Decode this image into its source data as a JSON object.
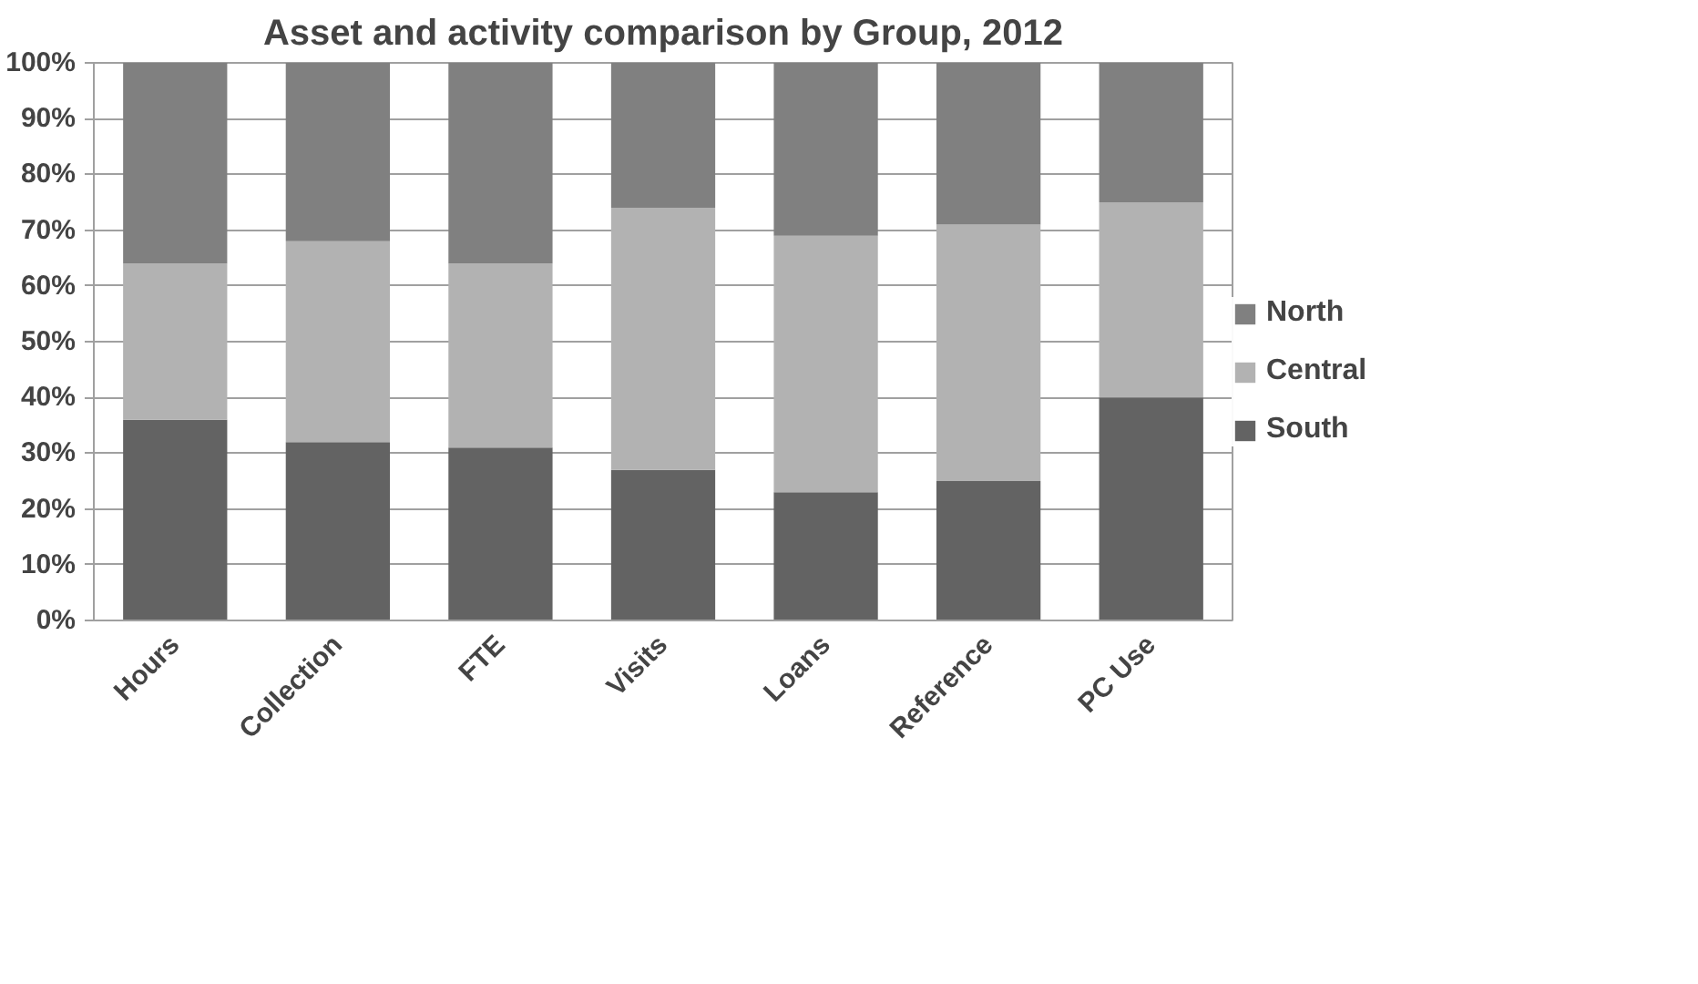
{
  "chart_data": {
    "type": "bar",
    "title": "Asset and activity comparison by Group, 2012",
    "stacked": true,
    "categories": [
      "Hours",
      "Collection",
      "FTE",
      "Visits",
      "Loans",
      "Reference",
      "PC Use"
    ],
    "series": [
      {
        "name": "South",
        "color": "#636363",
        "values": [
          36,
          32,
          31,
          27,
          23,
          25,
          40
        ]
      },
      {
        "name": "Central",
        "color": "#b2b2b2",
        "values": [
          28,
          36,
          33,
          47,
          46,
          46,
          35
        ]
      },
      {
        "name": "North",
        "color": "#808080",
        "values": [
          36,
          32,
          36,
          26,
          31,
          29,
          25
        ]
      }
    ],
    "ylim": [
      0,
      100
    ],
    "yticks": [
      {
        "value": 0,
        "label": "0%"
      },
      {
        "value": 10,
        "label": "10%"
      },
      {
        "value": 20,
        "label": "20%"
      },
      {
        "value": 30,
        "label": "30%"
      },
      {
        "value": 40,
        "label": "40%"
      },
      {
        "value": 50,
        "label": "50%"
      },
      {
        "value": 60,
        "label": "60%"
      },
      {
        "value": 70,
        "label": "70%"
      },
      {
        "value": 80,
        "label": "80%"
      },
      {
        "value": 90,
        "label": "90%"
      },
      {
        "value": 100,
        "label": "100%"
      }
    ],
    "grid": "y",
    "legend": "right"
  }
}
